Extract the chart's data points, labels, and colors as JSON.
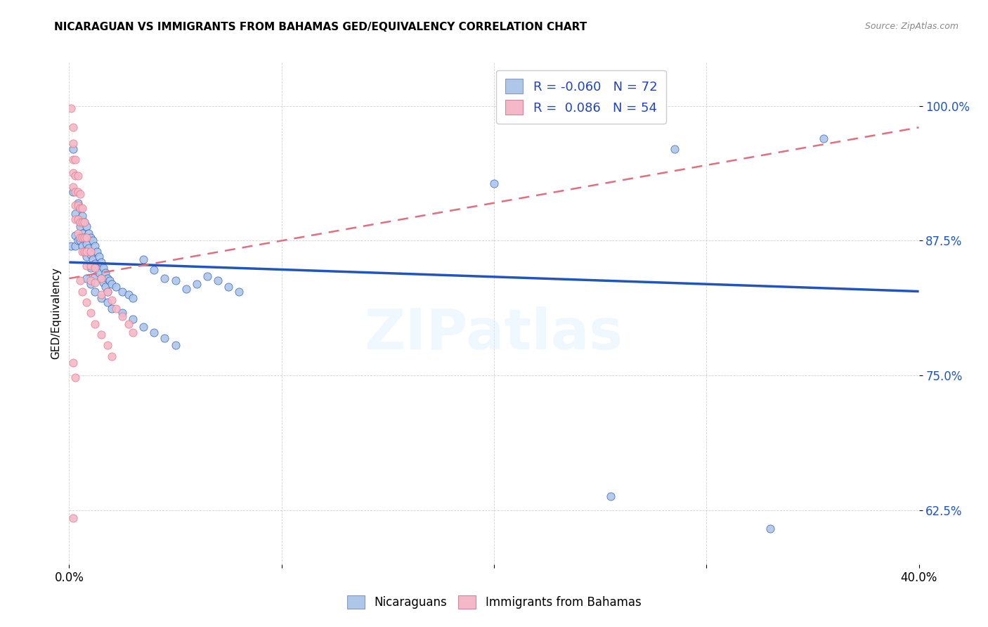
{
  "title": "NICARAGUAN VS IMMIGRANTS FROM BAHAMAS GED/EQUIVALENCY CORRELATION CHART",
  "source": "Source: ZipAtlas.com",
  "ylabel": "GED/Equivalency",
  "xmin": 0.0,
  "xmax": 0.4,
  "ymin": 0.575,
  "ymax": 1.04,
  "yticks": [
    0.625,
    0.75,
    0.875,
    1.0
  ],
  "ytick_labels": [
    "62.5%",
    "75.0%",
    "87.5%",
    "100.0%"
  ],
  "xticks": [
    0.0,
    0.1,
    0.2,
    0.3,
    0.4
  ],
  "xtick_labels": [
    "0.0%",
    "",
    "",
    "",
    "40.0%"
  ],
  "blue_color": "#aec6e8",
  "pink_color": "#f4b8c8",
  "line_blue": "#2255bb",
  "line_pink": "#e07080",
  "watermark": "ZIPatlas",
  "blue_scatter": [
    [
      0.001,
      0.87
    ],
    [
      0.002,
      0.96
    ],
    [
      0.002,
      0.92
    ],
    [
      0.003,
      0.9
    ],
    [
      0.003,
      0.88
    ],
    [
      0.003,
      0.87
    ],
    [
      0.004,
      0.91
    ],
    [
      0.004,
      0.895
    ],
    [
      0.004,
      0.875
    ],
    [
      0.005,
      0.905
    ],
    [
      0.005,
      0.888
    ],
    [
      0.005,
      0.875
    ],
    [
      0.006,
      0.898
    ],
    [
      0.006,
      0.882
    ],
    [
      0.006,
      0.87
    ],
    [
      0.007,
      0.892
    ],
    [
      0.007,
      0.878
    ],
    [
      0.007,
      0.865
    ],
    [
      0.008,
      0.888
    ],
    [
      0.008,
      0.872
    ],
    [
      0.008,
      0.86
    ],
    [
      0.009,
      0.882
    ],
    [
      0.009,
      0.868
    ],
    [
      0.01,
      0.878
    ],
    [
      0.01,
      0.862
    ],
    [
      0.01,
      0.85
    ],
    [
      0.011,
      0.875
    ],
    [
      0.011,
      0.858
    ],
    [
      0.012,
      0.87
    ],
    [
      0.012,
      0.854
    ],
    [
      0.012,
      0.842
    ],
    [
      0.013,
      0.865
    ],
    [
      0.013,
      0.85
    ],
    [
      0.014,
      0.86
    ],
    [
      0.014,
      0.845
    ],
    [
      0.015,
      0.855
    ],
    [
      0.015,
      0.84
    ],
    [
      0.016,
      0.85
    ],
    [
      0.016,
      0.836
    ],
    [
      0.017,
      0.845
    ],
    [
      0.017,
      0.832
    ],
    [
      0.018,
      0.84
    ],
    [
      0.018,
      0.828
    ],
    [
      0.019,
      0.838
    ],
    [
      0.02,
      0.835
    ],
    [
      0.022,
      0.832
    ],
    [
      0.025,
      0.828
    ],
    [
      0.028,
      0.825
    ],
    [
      0.03,
      0.822
    ],
    [
      0.035,
      0.858
    ],
    [
      0.04,
      0.848
    ],
    [
      0.045,
      0.84
    ],
    [
      0.05,
      0.838
    ],
    [
      0.055,
      0.83
    ],
    [
      0.06,
      0.835
    ],
    [
      0.065,
      0.842
    ],
    [
      0.07,
      0.838
    ],
    [
      0.075,
      0.832
    ],
    [
      0.08,
      0.828
    ],
    [
      0.008,
      0.84
    ],
    [
      0.01,
      0.835
    ],
    [
      0.012,
      0.828
    ],
    [
      0.015,
      0.822
    ],
    [
      0.018,
      0.818
    ],
    [
      0.02,
      0.812
    ],
    [
      0.025,
      0.808
    ],
    [
      0.03,
      0.802
    ],
    [
      0.035,
      0.795
    ],
    [
      0.04,
      0.79
    ],
    [
      0.045,
      0.785
    ],
    [
      0.05,
      0.778
    ],
    [
      0.2,
      0.928
    ],
    [
      0.285,
      0.96
    ],
    [
      0.355,
      0.97
    ],
    [
      0.255,
      0.638
    ],
    [
      0.33,
      0.608
    ]
  ],
  "pink_scatter": [
    [
      0.001,
      0.998
    ],
    [
      0.002,
      0.98
    ],
    [
      0.002,
      0.965
    ],
    [
      0.002,
      0.95
    ],
    [
      0.002,
      0.938
    ],
    [
      0.002,
      0.925
    ],
    [
      0.003,
      0.95
    ],
    [
      0.003,
      0.935
    ],
    [
      0.003,
      0.92
    ],
    [
      0.003,
      0.908
    ],
    [
      0.003,
      0.895
    ],
    [
      0.004,
      0.935
    ],
    [
      0.004,
      0.92
    ],
    [
      0.004,
      0.908
    ],
    [
      0.004,
      0.895
    ],
    [
      0.004,
      0.882
    ],
    [
      0.005,
      0.918
    ],
    [
      0.005,
      0.905
    ],
    [
      0.005,
      0.892
    ],
    [
      0.005,
      0.878
    ],
    [
      0.006,
      0.905
    ],
    [
      0.006,
      0.892
    ],
    [
      0.006,
      0.878
    ],
    [
      0.006,
      0.865
    ],
    [
      0.007,
      0.892
    ],
    [
      0.007,
      0.878
    ],
    [
      0.007,
      0.865
    ],
    [
      0.008,
      0.878
    ],
    [
      0.008,
      0.865
    ],
    [
      0.008,
      0.852
    ],
    [
      0.01,
      0.865
    ],
    [
      0.01,
      0.852
    ],
    [
      0.01,
      0.838
    ],
    [
      0.012,
      0.85
    ],
    [
      0.012,
      0.836
    ],
    [
      0.015,
      0.84
    ],
    [
      0.015,
      0.825
    ],
    [
      0.018,
      0.828
    ],
    [
      0.02,
      0.82
    ],
    [
      0.022,
      0.812
    ],
    [
      0.025,
      0.805
    ],
    [
      0.028,
      0.798
    ],
    [
      0.03,
      0.79
    ],
    [
      0.005,
      0.838
    ],
    [
      0.006,
      0.828
    ],
    [
      0.008,
      0.818
    ],
    [
      0.01,
      0.808
    ],
    [
      0.012,
      0.798
    ],
    [
      0.015,
      0.788
    ],
    [
      0.018,
      0.778
    ],
    [
      0.02,
      0.768
    ],
    [
      0.002,
      0.762
    ],
    [
      0.003,
      0.748
    ],
    [
      0.002,
      0.618
    ]
  ],
  "blue_trend_x": [
    0.0,
    0.4
  ],
  "blue_trend_y": [
    0.855,
    0.828
  ],
  "pink_trend_x": [
    0.0,
    0.4
  ],
  "pink_trend_y": [
    0.84,
    0.98
  ]
}
